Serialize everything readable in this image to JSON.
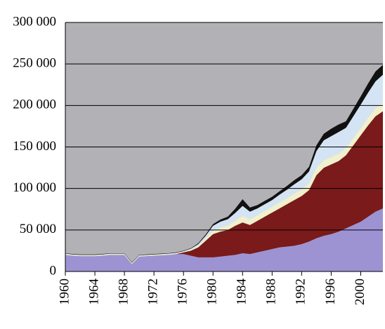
{
  "chart_data": {
    "type": "stacked-area",
    "x": [
      1960,
      1961,
      1962,
      1963,
      1964,
      1965,
      1966,
      1967,
      1968,
      1969,
      1970,
      1971,
      1972,
      1973,
      1974,
      1975,
      1976,
      1977,
      1978,
      1979,
      1980,
      1981,
      1982,
      1983,
      1984,
      1985,
      1986,
      1987,
      1988,
      1989,
      1990,
      1991,
      1992,
      1993,
      1994,
      1995,
      1996,
      1997,
      1998,
      1999,
      2000,
      2001,
      2002,
      2003
    ],
    "series": [
      {
        "color": "#9d93d3",
        "values": [
          20000,
          19000,
          18500,
          18500,
          18500,
          19000,
          20000,
          20000,
          20000,
          9000,
          18000,
          18500,
          19000,
          19500,
          20000,
          21000,
          21000,
          19000,
          17000,
          17000,
          17000,
          18000,
          19000,
          20000,
          22000,
          21000,
          23000,
          25000,
          27000,
          29000,
          30000,
          31000,
          33000,
          36000,
          40000,
          43000,
          45000,
          48000,
          52000,
          56000,
          60000,
          66000,
          72000,
          76000
        ]
      },
      {
        "color": "#7a1a1a",
        "values": [
          0,
          0,
          0,
          0,
          0,
          0,
          0,
          0,
          0,
          0,
          0,
          0,
          0,
          0,
          0,
          0,
          2000,
          6000,
          12000,
          20000,
          28000,
          30000,
          31000,
          35000,
          37000,
          35000,
          38000,
          41000,
          44000,
          47000,
          51000,
          55000,
          58000,
          62000,
          76000,
          82000,
          84000,
          85000,
          88000,
          96000,
          104000,
          110000,
          115000,
          117000
        ]
      },
      {
        "color": "#f0f0cc",
        "values": [
          1000,
          1000,
          1000,
          1000,
          1000,
          1000,
          1000,
          1000,
          1000,
          1000,
          1000,
          1000,
          1000,
          1000,
          1000,
          1000,
          1000,
          1500,
          2000,
          3000,
          4000,
          5000,
          5500,
          6500,
          8000,
          7000,
          7000,
          7000,
          7000,
          7500,
          7500,
          8000,
          8000,
          8500,
          9000,
          9000,
          9000,
          9000,
          9000,
          9000,
          9000,
          9500,
          10000,
          10000
        ]
      },
      {
        "color": "#d4e4f4",
        "values": [
          500,
          500,
          500,
          500,
          500,
          500,
          500,
          500,
          500,
          500,
          500,
          500,
          500,
          500,
          500,
          500,
          500,
          1000,
          2000,
          3000,
          6000,
          7000,
          7500,
          9000,
          12000,
          9000,
          8000,
          8000,
          8000,
          9000,
          10000,
          11000,
          12000,
          14000,
          20000,
          24000,
          25000,
          26000,
          24000,
          26000,
          28000,
          30000,
          32000,
          34000
        ]
      },
      {
        "color": "#111111",
        "values": [
          500,
          500,
          500,
          500,
          500,
          500,
          500,
          500,
          500,
          500,
          500,
          500,
          500,
          500,
          500,
          500,
          500,
          500,
          1000,
          1500,
          2000,
          2500,
          3000,
          5000,
          8000,
          5000,
          4000,
          4000,
          4000,
          4000,
          4500,
          5000,
          5000,
          5500,
          7000,
          8000,
          9000,
          9000,
          8000,
          9000,
          10000,
          11000,
          12000,
          12000
        ]
      }
    ],
    "xlim": [
      1960,
      2003
    ],
    "xticks": [
      1960,
      1964,
      1968,
      1972,
      1976,
      1980,
      1984,
      1988,
      1992,
      1996,
      2000
    ],
    "ylim": [
      0,
      300000
    ],
    "yticks": [
      0,
      {
        "value": 50000,
        "label": "50 000"
      },
      {
        "value": 100000,
        "label": "100 000"
      },
      {
        "value": 150000,
        "label": "150 000"
      },
      {
        "value": 200000,
        "label": "200 000"
      },
      {
        "value": 250000,
        "label": "250 000"
      },
      {
        "value": 300000,
        "label": "300 000"
      }
    ],
    "grid": true,
    "background": "#b2b2b6"
  }
}
